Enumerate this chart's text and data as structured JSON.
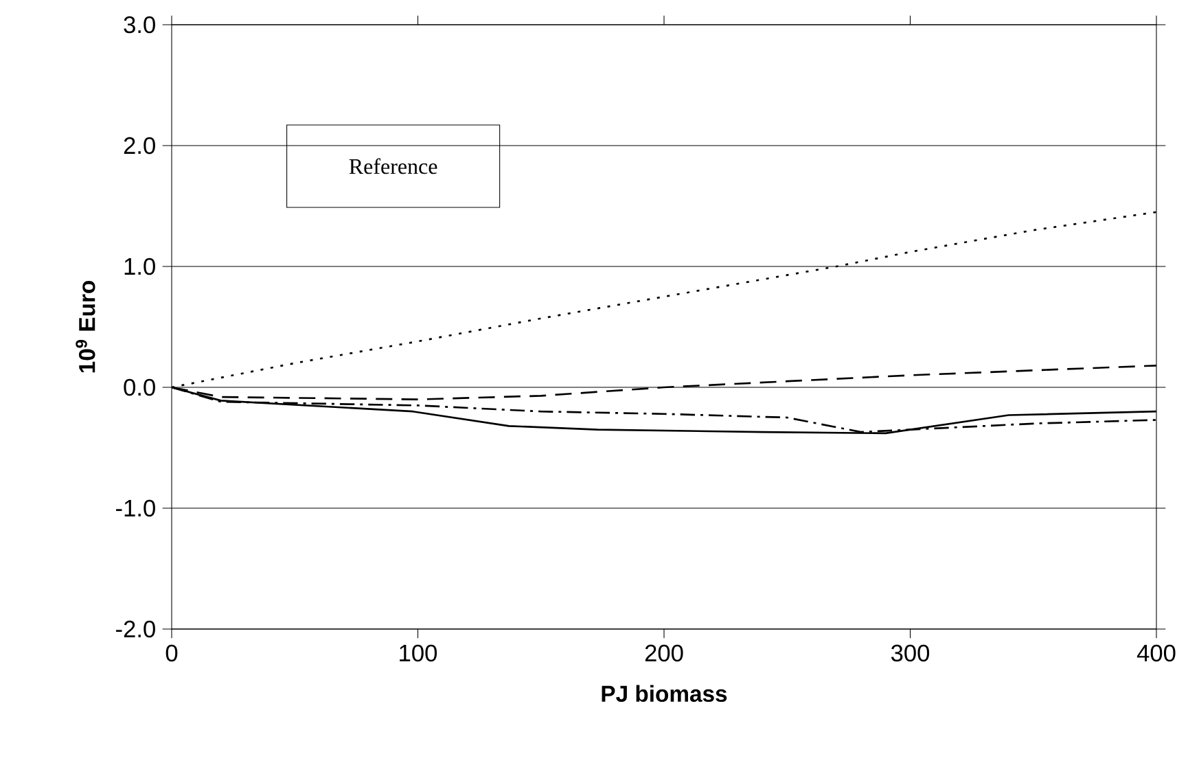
{
  "chart_data": {
    "type": "line",
    "xlabel": "PJ biomass",
    "ylabel": "10$^{9}$ Euro",
    "xlim": [
      0,
      400
    ],
    "ylim": [
      -2.0,
      3.0
    ],
    "xticks": [
      0,
      100,
      200,
      300,
      400
    ],
    "yticks": [
      {
        "value": -2,
        "label": "-2.0"
      },
      {
        "value": -1,
        "label": "-1.0"
      },
      {
        "value": 0,
        "label": "0.0"
      },
      {
        "value": 1,
        "label": "1.0"
      },
      {
        "value": 2,
        "label": "2.0"
      },
      {
        "value": 3,
        "label": "3.0"
      }
    ],
    "grid": "y",
    "annotations": [
      "Reference"
    ],
    "series": [
      {
        "color": "#000000",
        "line_style": "dotted",
        "x": [
          0,
          50,
          100,
          150,
          200,
          270,
          300,
          350,
          400
        ],
        "values": [
          0,
          0.2,
          0.38,
          0.57,
          0.75,
          1.0,
          1.12,
          1.3,
          1.45
        ]
      },
      {
        "color": "#000000",
        "line_style": "dashed",
        "x": [
          0,
          20,
          100,
          150,
          200,
          250,
          300,
          350,
          400
        ],
        "values": [
          0,
          -0.08,
          -0.1,
          -0.07,
          0,
          0.05,
          0.1,
          0.14,
          0.18
        ]
      },
      {
        "color": "#000000",
        "line_style": "solid",
        "x": [
          0,
          20,
          98,
          137,
          173,
          240,
          290,
          340,
          400
        ],
        "values": [
          0,
          -0.11,
          -0.2,
          -0.32,
          -0.35,
          -0.37,
          -0.38,
          -0.23,
          -0.2
        ]
      },
      {
        "color": "#000000",
        "line_style": "dashdotted",
        "x": [
          0,
          20,
          100,
          150,
          200,
          250,
          280,
          300,
          350,
          400
        ],
        "values": [
          0,
          -0.12,
          -0.15,
          -0.2,
          -0.22,
          -0.25,
          -0.37,
          -0.35,
          -0.3,
          -0.27
        ]
      }
    ]
  }
}
